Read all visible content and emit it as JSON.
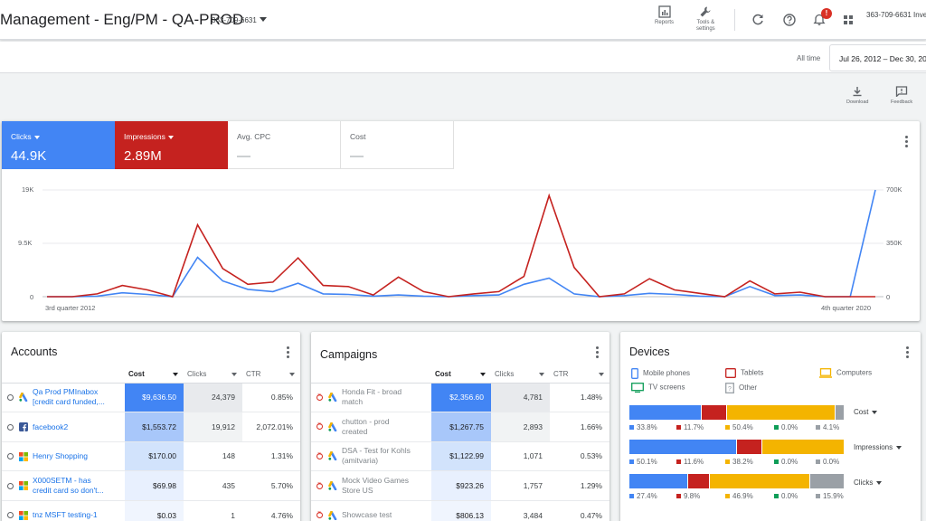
{
  "header": {
    "title": "Management - Eng/PM - QA-PROD",
    "account_id": "363-709-6631",
    "reports_label": "Reports",
    "tools_label_line1": "Tools &",
    "tools_label_line2": "settings",
    "notification_count": "!",
    "account_right": "363-709-6631 Inve"
  },
  "datebar": {
    "all_time": "All time",
    "range": "Jul 26, 2012 – Dec 30, 20"
  },
  "actions": {
    "download": "Download",
    "feedback": "Feedback"
  },
  "metrics": [
    {
      "label": "Clicks",
      "value": "44.9K"
    },
    {
      "label": "Impressions",
      "value": "2.89M"
    },
    {
      "label": "Avg. CPC",
      "value": "—"
    },
    {
      "label": "Cost",
      "value": "—"
    }
  ],
  "chart_data": {
    "type": "line",
    "x_start_label": "3rd quarter 2012",
    "x_end_label": "4th quarter 2020",
    "y_left_ticks": [
      "19K",
      "9.5K",
      "0"
    ],
    "y_right_ticks": [
      "700K",
      "350K",
      "0"
    ],
    "y_left_lim": [
      0,
      19000
    ],
    "y_right_lim": [
      0,
      700000
    ],
    "grid": true,
    "series": [
      {
        "name": "Clicks",
        "color": "#4285f4",
        "axis": "left",
        "values": [
          0,
          0,
          100,
          700,
          400,
          0,
          7000,
          2800,
          1300,
          900,
          2400,
          500,
          400,
          100,
          300,
          100,
          0,
          200,
          300,
          2200,
          3300,
          500,
          0,
          200,
          600,
          400,
          100,
          0,
          1800,
          200,
          300,
          0,
          0,
          19000
        ]
      },
      {
        "name": "Impressions",
        "color": "#c5221f",
        "axis": "left",
        "values": [
          0,
          0,
          500,
          2000,
          1200,
          0,
          12800,
          5000,
          2200,
          2600,
          6900,
          2000,
          1800,
          300,
          3500,
          900,
          0,
          500,
          900,
          3600,
          18000,
          5200,
          0,
          500,
          3200,
          1200,
          600,
          0,
          2800,
          500,
          800,
          0,
          0,
          0
        ]
      }
    ]
  },
  "accounts": {
    "title": "Accounts",
    "columns": [
      "Cost",
      "Clicks",
      "CTR"
    ],
    "rows": [
      {
        "name1": "Qa Prod PMInabox",
        "name2": "[credit card funded,...",
        "cost": "$9,636.50",
        "clicks": "24,379",
        "ctr": "0.85%"
      },
      {
        "name1": "facebook2",
        "name2": "",
        "cost": "$1,553.72",
        "clicks": "19,912",
        "ctr": "2,072.01%"
      },
      {
        "name1": "Henry Shopping",
        "name2": "",
        "cost": "$170.00",
        "clicks": "148",
        "ctr": "1.31%"
      },
      {
        "name1": "X000SETM - has",
        "name2": "credit card so don't...",
        "cost": "$69.98",
        "clicks": "435",
        "ctr": "5.70%"
      },
      {
        "name1": "tnz MSFT testing-1",
        "name2": "",
        "cost": "$0.03",
        "clicks": "1",
        "ctr": "4.76%"
      }
    ]
  },
  "campaigns": {
    "title": "Campaigns",
    "columns": [
      "Cost",
      "Clicks",
      "CTR"
    ],
    "rows": [
      {
        "name1": "Honda Fit - broad",
        "name2": "match",
        "cost": "$2,356.60",
        "clicks": "4,781",
        "ctr": "1.48%"
      },
      {
        "name1": "chutton - prod",
        "name2": "created",
        "cost": "$1,267.75",
        "clicks": "2,893",
        "ctr": "1.66%"
      },
      {
        "name1": "DSA - Test for Kohls",
        "name2": "(amitvaria)",
        "cost": "$1,122.99",
        "clicks": "1,071",
        "ctr": "0.53%"
      },
      {
        "name1": "Mock Video Games",
        "name2": "Store US",
        "cost": "$923.26",
        "clicks": "1,757",
        "ctr": "1.29%"
      },
      {
        "name1": "Showcase test",
        "name2": "",
        "cost": "$806.13",
        "clicks": "3,484",
        "ctr": "0.47%"
      }
    ]
  },
  "devices": {
    "title": "Devices",
    "legend": [
      "Mobile phones",
      "Tablets",
      "Computers",
      "TV screens",
      "Other"
    ],
    "colors": {
      "mobile": "#4285f4",
      "tablets": "#c5221f",
      "computers": "#f4b400",
      "tv": "#0f9d58",
      "other": "#9aa0a6"
    },
    "bars": [
      {
        "metric": "Cost",
        "shares": [
          33.8,
          11.7,
          50.4,
          0.0,
          4.1
        ],
        "labels": [
          "33.8%",
          "11.7%",
          "50.4%",
          "0.0%",
          "4.1%"
        ]
      },
      {
        "metric": "Impressions",
        "shares": [
          50.1,
          11.6,
          38.2,
          0.0,
          0.0
        ],
        "labels": [
          "50.1%",
          "11.6%",
          "38.2%",
          "0.0%",
          "0.0%"
        ]
      },
      {
        "metric": "Clicks",
        "shares": [
          27.4,
          9.8,
          46.9,
          0.0,
          15.9
        ],
        "labels": [
          "27.4%",
          "9.8%",
          "46.9%",
          "0.0%",
          "15.9%"
        ]
      }
    ]
  }
}
